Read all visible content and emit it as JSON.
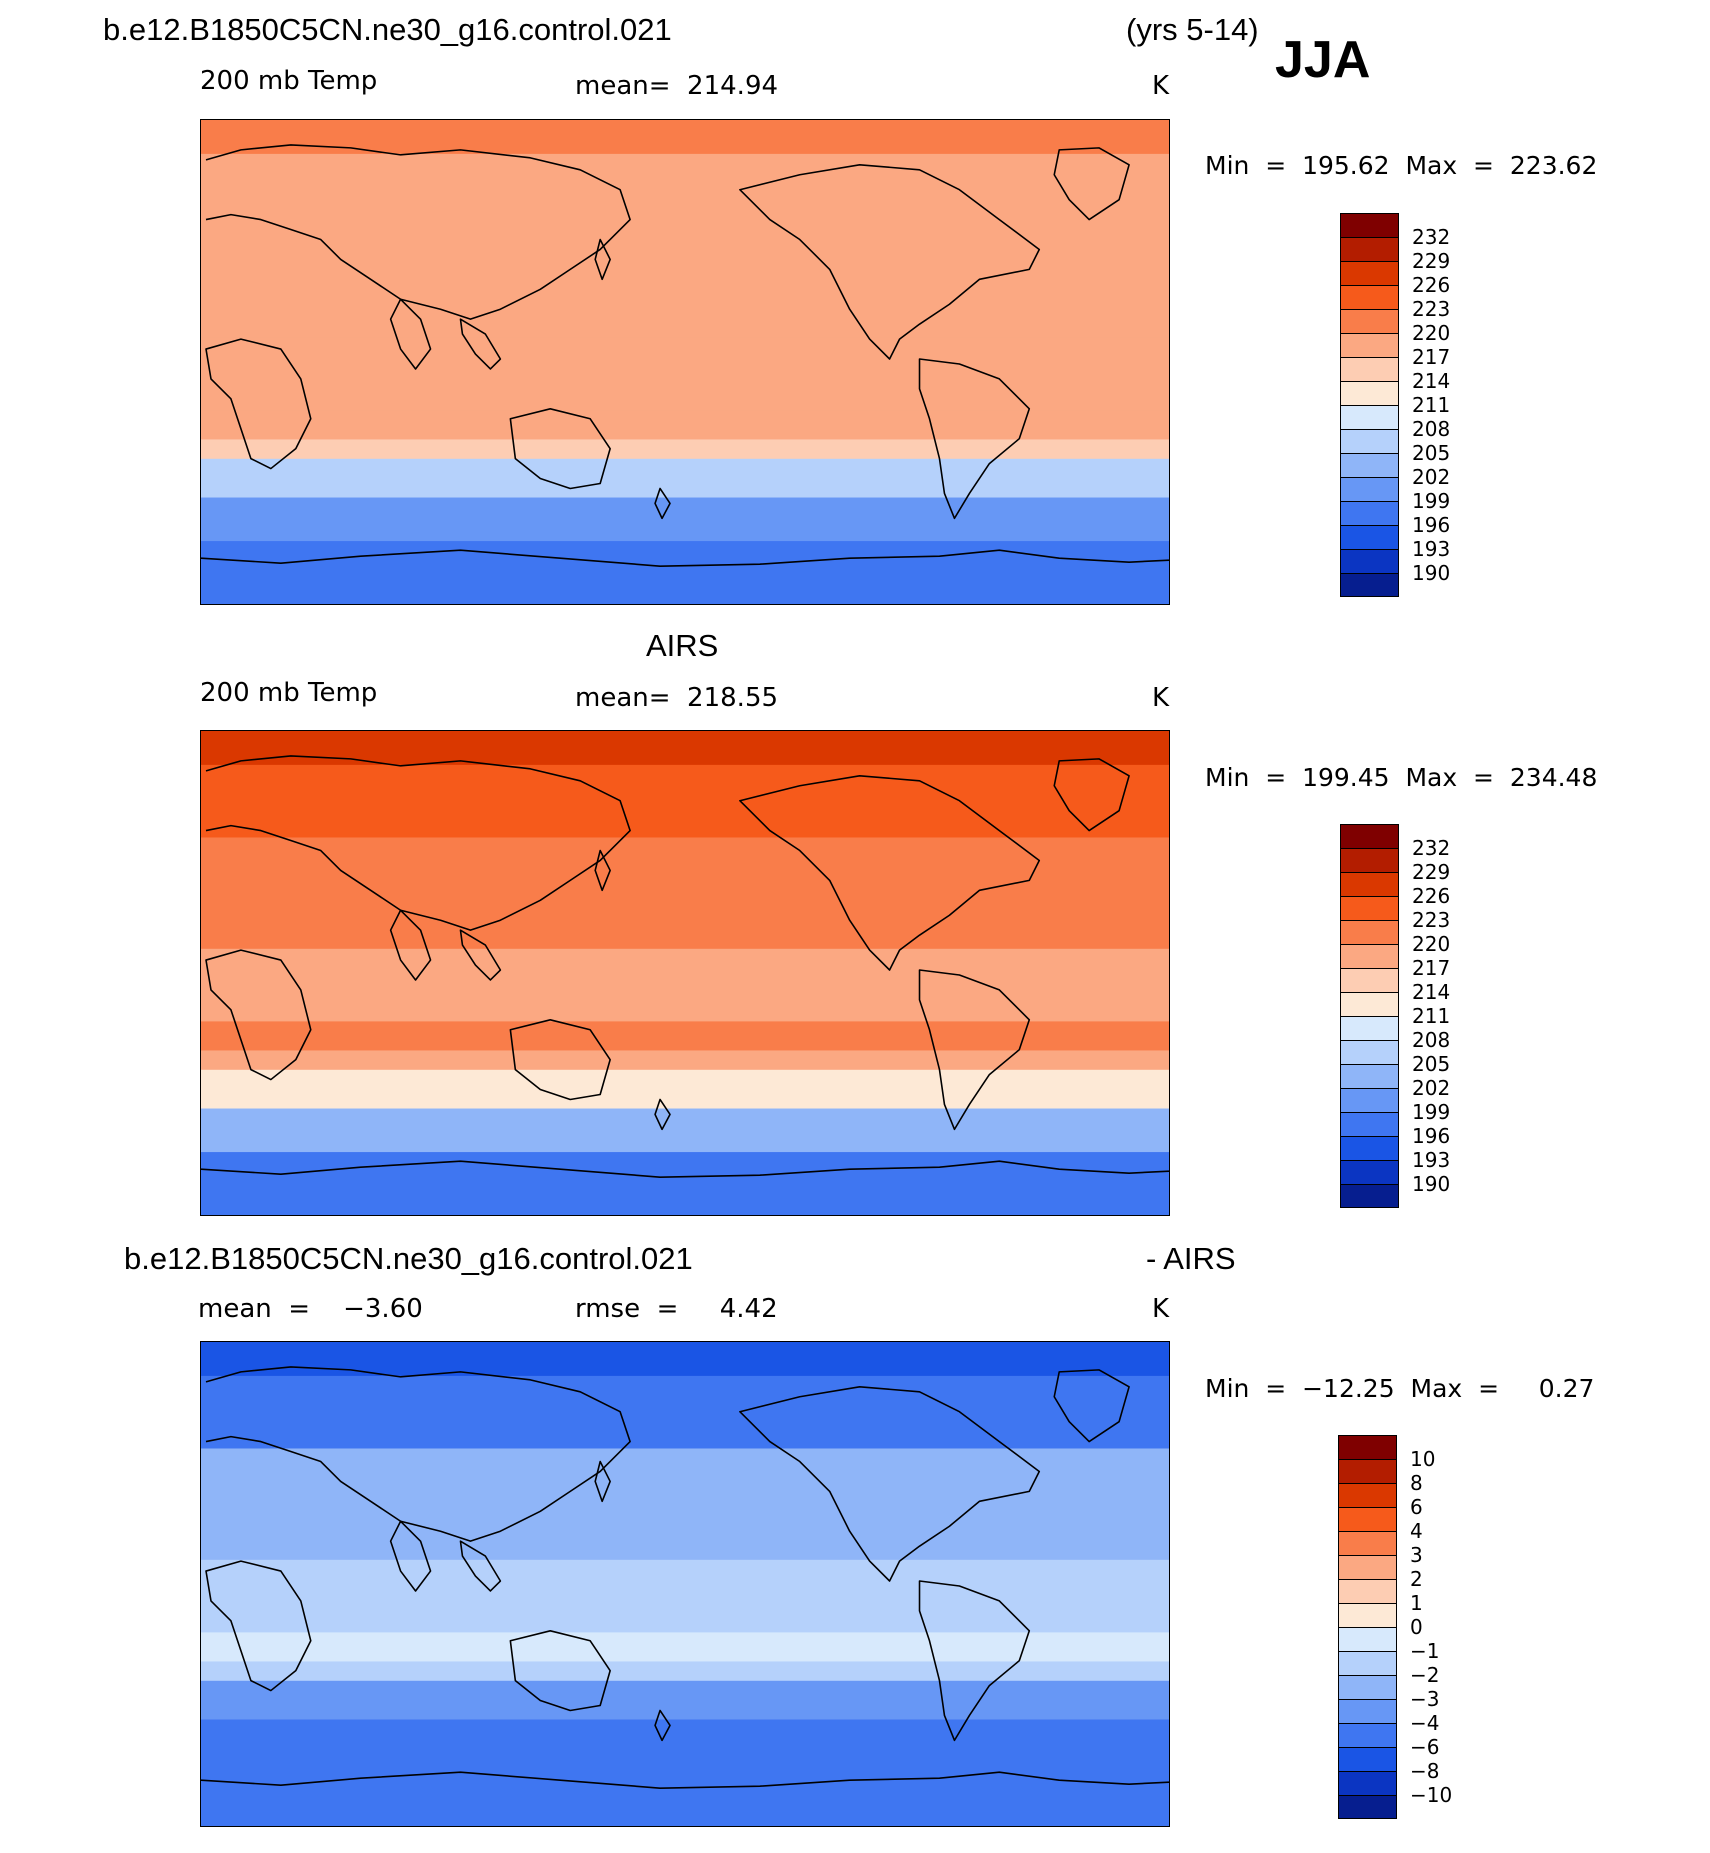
{
  "header": {
    "case_name": "b.e12.B1850C5CN.ne30_g16.control.021",
    "years": "(yrs 5-14)",
    "season": "JJA"
  },
  "panel_model": {
    "variable": "200 mb Temp",
    "mean": "mean=  214.94",
    "units": "K",
    "minmax": "Min  =  195.62  Max  =  223.62"
  },
  "panel_obs": {
    "title": "AIRS",
    "variable": "200 mb Temp",
    "mean": "mean=  218.55",
    "units": "K",
    "minmax": "Min  =  199.45  Max  =  234.48"
  },
  "panel_diff": {
    "title_left": "b.e12.B1850C5CN.ne30_g16.control.021",
    "title_right": "- AIRS",
    "mean": "mean  =    −3.60",
    "rmse": "rmse  =     4.42",
    "units": "K",
    "minmax": "Min  =  −12.25  Max  =     0.27"
  },
  "colorbar_temp": {
    "labels": [
      "232",
      "229",
      "226",
      "223",
      "220",
      "217",
      "214",
      "211",
      "208",
      "205",
      "202",
      "199",
      "196",
      "193",
      "190"
    ],
    "colors": [
      "#7f0000",
      "#b31d00",
      "#da3800",
      "#f65a1b",
      "#f97d4a",
      "#fba882",
      "#fdcdb3",
      "#fde9d6",
      "#d7e9fc",
      "#b5d1fb",
      "#8fb5f8",
      "#6797f5",
      "#3f76f1",
      "#1a55e5",
      "#0b35c2",
      "#061e8f"
    ]
  },
  "colorbar_diff": {
    "labels": [
      "10",
      "8",
      "6",
      "4",
      "3",
      "2",
      "1",
      "0",
      "−1",
      "−2",
      "−3",
      "−4",
      "−6",
      "−8",
      "−10"
    ],
    "colors": [
      "#7f0000",
      "#b31d00",
      "#da3800",
      "#f65a1b",
      "#f97d4a",
      "#fba882",
      "#fdcdb3",
      "#fde9d6",
      "#d7e9fc",
      "#b5d1fb",
      "#8fb5f8",
      "#6797f5",
      "#3f76f1",
      "#1a55e5",
      "#0b35c2",
      "#061e8f"
    ]
  },
  "map_fields": {
    "model": [
      "#f97d4a",
      "#fba882",
      "#fba882",
      "#fba882",
      "#fba882",
      "#fdcdb3",
      "#b5d1fb",
      "#6797f5",
      "#3f76f1"
    ],
    "obs": [
      "#da3800",
      "#f65a1b",
      "#f97d4a",
      "#fba882",
      "#f97d4a",
      "#fba882",
      "#fde9d6",
      "#8fb5f8",
      "#3f76f1"
    ],
    "diff": [
      "#1a55e5",
      "#3f76f1",
      "#8fb5f8",
      "#b5d1fb",
      "#d7e9fc",
      "#b5d1fb",
      "#6797f5",
      "#3f76f1",
      "#3f76f1"
    ]
  }
}
